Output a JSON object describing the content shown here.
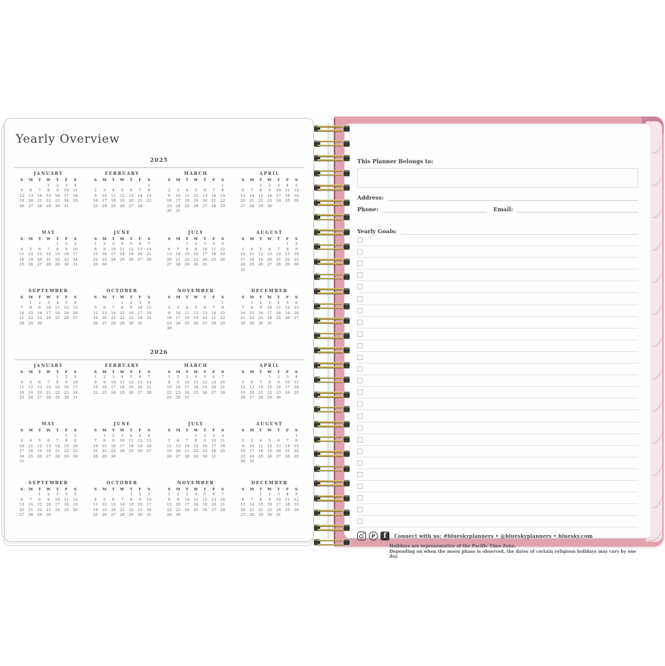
{
  "left_page": {
    "title": "Yearly Overview"
  },
  "calendar": {
    "weekday_headers": [
      "S",
      "M",
      "T",
      "W",
      "T",
      "F",
      "S"
    ],
    "years": [
      {
        "year": "2025",
        "months": [
          {
            "name": "JANUARY",
            "first_dow": 3,
            "days": 31
          },
          {
            "name": "FEBRUARY",
            "first_dow": 6,
            "days": 28
          },
          {
            "name": "MARCH",
            "first_dow": 6,
            "days": 31
          },
          {
            "name": "APRIL",
            "first_dow": 2,
            "days": 30
          },
          {
            "name": "MAY",
            "first_dow": 4,
            "days": 31
          },
          {
            "name": "JUNE",
            "first_dow": 0,
            "days": 30
          },
          {
            "name": "JULY",
            "first_dow": 2,
            "days": 31
          },
          {
            "name": "AUGUST",
            "first_dow": 5,
            "days": 31
          },
          {
            "name": "SEPTEMBER",
            "first_dow": 1,
            "days": 30
          },
          {
            "name": "OCTOBER",
            "first_dow": 3,
            "days": 31
          },
          {
            "name": "NOVEMBER",
            "first_dow": 6,
            "days": 30
          },
          {
            "name": "DECEMBER",
            "first_dow": 1,
            "days": 31
          }
        ]
      },
      {
        "year": "2026",
        "months": [
          {
            "name": "JANUARY",
            "first_dow": 4,
            "days": 31
          },
          {
            "name": "FEBRUARY",
            "first_dow": 0,
            "days": 28
          },
          {
            "name": "MARCH",
            "first_dow": 0,
            "days": 31
          },
          {
            "name": "APRIL",
            "first_dow": 3,
            "days": 30
          },
          {
            "name": "MAY",
            "first_dow": 5,
            "days": 31
          },
          {
            "name": "JUNE",
            "first_dow": 1,
            "days": 30
          },
          {
            "name": "JULY",
            "first_dow": 3,
            "days": 31
          },
          {
            "name": "AUGUST",
            "first_dow": 6,
            "days": 31
          },
          {
            "name": "SEPTEMBER",
            "first_dow": 2,
            "days": 30
          },
          {
            "name": "OCTOBER",
            "first_dow": 4,
            "days": 31
          },
          {
            "name": "NOVEMBER",
            "first_dow": 0,
            "days": 30
          },
          {
            "name": "DECEMBER",
            "first_dow": 2,
            "days": 31
          }
        ]
      }
    ]
  },
  "right_page": {
    "belongs_label": "This Planner Belongs to:",
    "address_label": "Address:",
    "phone_label": "Phone:",
    "email_label": "Email:",
    "goals_label": "Yearly Goals:",
    "goal_line_count": 25
  },
  "footer": {
    "connect_text": "Connect with us: #blueskyplanners • @blueskyplanners • bluesky.com",
    "disclaimer_line1": "Holidays are representative of the Pacific Time Zone.",
    "disclaimer_line2": "Depending on when the moon phase is observed, the dates of certain religious holidays may vary by one day.",
    "social_icons": [
      "instagram-icon",
      "pinterest-icon",
      "facebook-icon"
    ]
  },
  "binding": {
    "loop_count": 29
  },
  "colors": {
    "cover_pink": "#dfa3b0",
    "spine_pink": "#a05a6d",
    "fore_edge_pink": "#f6e6ea",
    "wire_gold": "#b89c49",
    "text_dark": "#42464c",
    "rule_gray": "#d2d2d2"
  }
}
